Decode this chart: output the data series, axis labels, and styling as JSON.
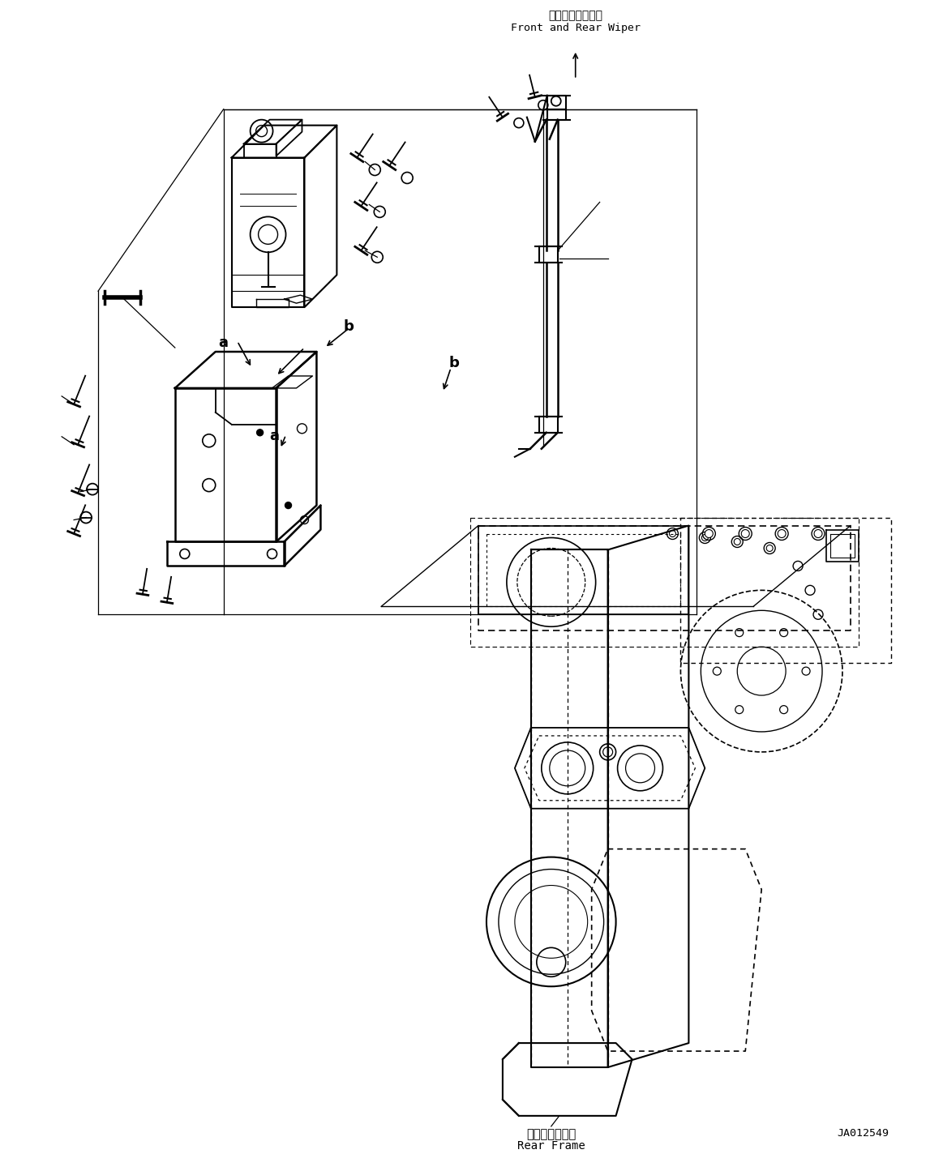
{
  "bg_color": "#ffffff",
  "line_color": "#000000",
  "label_top_jp": "前方・後方ワイパ",
  "label_top_en": "Front and Rear Wiper",
  "label_bottom_jp": "リヤーフレーム",
  "label_bottom_en": "Rear Frame",
  "label_id": "JA012549",
  "figsize": [
    11.63,
    14.24
  ],
  "dpi": 100
}
